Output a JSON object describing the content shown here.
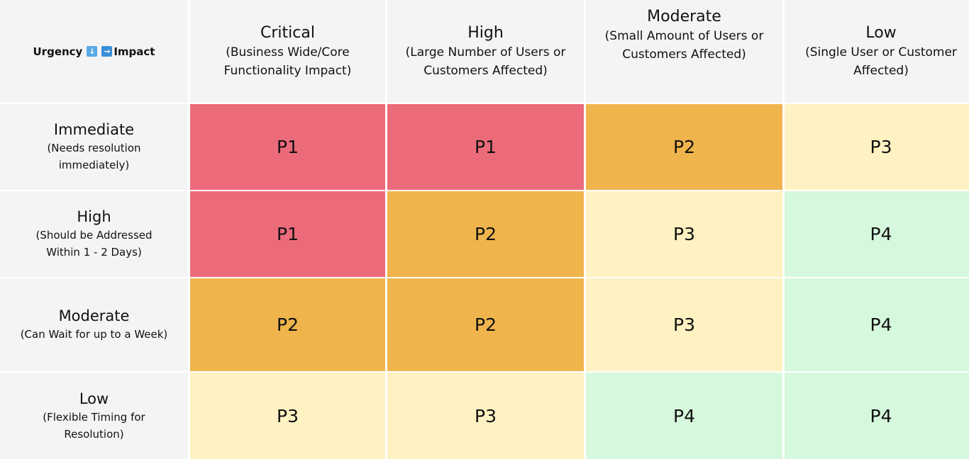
{
  "corner": {
    "urgency_label": "Urgency",
    "impact_label": "Impact",
    "urgency_icon": "arrow-down-icon",
    "impact_icon": "arrow-right-icon"
  },
  "columns": [
    {
      "title": "Critical",
      "subtitle": "(Business Wide/Core Functionality Impact)"
    },
    {
      "title": "High",
      "subtitle": "(Large Number of Users or Customers Affected)"
    },
    {
      "title": "Moderate",
      "subtitle": "(Small Amount of Users or Customers Affected)"
    },
    {
      "title": "Low",
      "subtitle": "(Single User or Customer Affected)"
    }
  ],
  "rows": [
    {
      "title": "Immediate",
      "subtitle": "(Needs resolution immediately)",
      "cells": [
        "P1",
        "P1",
        "P2",
        "P3"
      ]
    },
    {
      "title": "High",
      "subtitle": "(Should be Addressed Within 1 - 2 Days)",
      "cells": [
        "P1",
        "P2",
        "P3",
        "P4"
      ]
    },
    {
      "title": "Moderate",
      "subtitle": "(Can Wait for up to a Week)",
      "cells": [
        "P2",
        "P2",
        "P3",
        "P4"
      ]
    },
    {
      "title": "Low",
      "subtitle": "(Flexible Timing for Resolution)",
      "cells": [
        "P3",
        "P3",
        "P4",
        "P4"
      ]
    }
  ],
  "colors": {
    "P1": "#ec6b7a",
    "P2": "#efb44c",
    "P3": "#fff2c2",
    "P4": "#d6f8dc",
    "header_bg": "#f4f4f4"
  }
}
